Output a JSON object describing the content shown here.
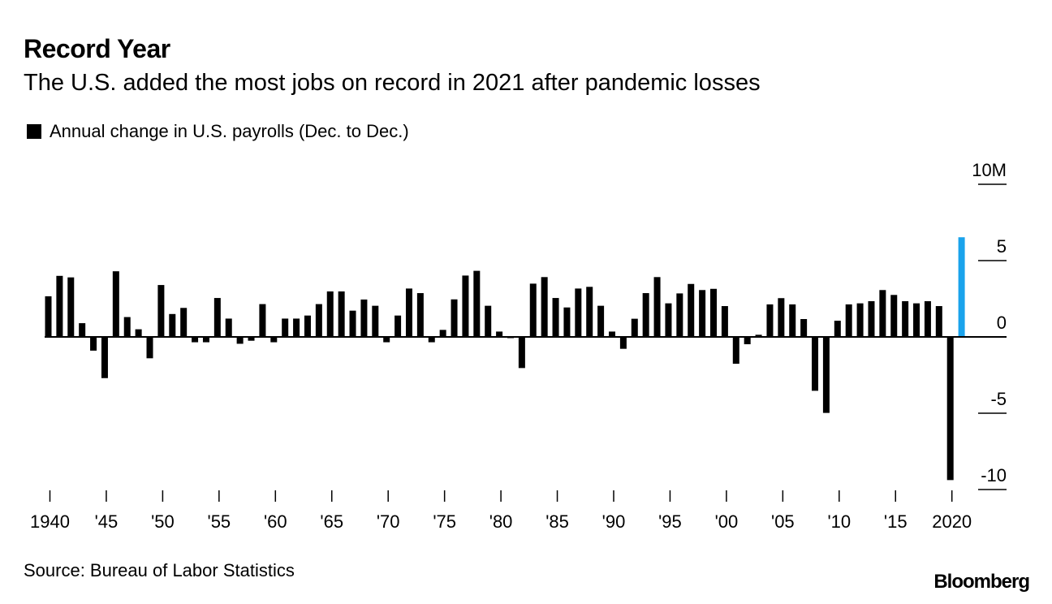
{
  "header": {
    "title": "Record Year",
    "subtitle": "The U.S. added the most jobs on record in 2021 after pandemic losses"
  },
  "footer": {
    "source": "Source: Bureau of Labor Statistics",
    "logo": "Bloomberg"
  },
  "colors": {
    "bar": "#000000",
    "highlight": "#1aa3ec"
  },
  "chart_data": {
    "type": "bar",
    "title": "Record Year",
    "legend": [
      "Annual change in U.S. payrolls (Dec. to Dec.)"
    ],
    "legend_placement": "top-left",
    "ylabel": "",
    "xlabel": "",
    "units": "millions",
    "ylim": [
      -10,
      10
    ],
    "y_ticks": [
      {
        "value": 10,
        "label": "10M"
      },
      {
        "value": 5,
        "label": "5"
      },
      {
        "value": 0,
        "label": "0"
      },
      {
        "value": -5,
        "label": "-5"
      },
      {
        "value": -10,
        "label": "-10"
      }
    ],
    "x_ticks": [
      {
        "year": 1940,
        "label": "1940"
      },
      {
        "year": 1945,
        "label": "'45"
      },
      {
        "year": 1950,
        "label": "'50"
      },
      {
        "year": 1955,
        "label": "'55"
      },
      {
        "year": 1960,
        "label": "'60"
      },
      {
        "year": 1965,
        "label": "'65"
      },
      {
        "year": 1970,
        "label": "'70"
      },
      {
        "year": 1975,
        "label": "'75"
      },
      {
        "year": 1980,
        "label": "'80"
      },
      {
        "year": 1985,
        "label": "'85"
      },
      {
        "year": 1990,
        "label": "'90"
      },
      {
        "year": 1995,
        "label": "'95"
      },
      {
        "year": 2000,
        "label": "'00"
      },
      {
        "year": 2005,
        "label": "'05"
      },
      {
        "year": 2010,
        "label": "'10"
      },
      {
        "year": 2015,
        "label": "'15"
      },
      {
        "year": 2020,
        "label": "2020"
      }
    ],
    "highlight_year": 2021,
    "x": [
      1940,
      1941,
      1942,
      1943,
      1944,
      1945,
      1946,
      1947,
      1948,
      1949,
      1950,
      1951,
      1952,
      1953,
      1954,
      1955,
      1956,
      1957,
      1958,
      1959,
      1960,
      1961,
      1962,
      1963,
      1964,
      1965,
      1966,
      1967,
      1968,
      1969,
      1970,
      1971,
      1972,
      1973,
      1974,
      1975,
      1976,
      1977,
      1978,
      1979,
      1980,
      1981,
      1982,
      1983,
      1984,
      1985,
      1986,
      1987,
      1988,
      1989,
      1990,
      1991,
      1992,
      1993,
      1994,
      1995,
      1996,
      1997,
      1998,
      1999,
      2000,
      2001,
      2002,
      2003,
      2004,
      2005,
      2006,
      2007,
      2008,
      2009,
      2010,
      2011,
      2012,
      2013,
      2014,
      2015,
      2016,
      2017,
      2018,
      2019,
      2020,
      2021
    ],
    "values": [
      2.66,
      4.0,
      3.9,
      0.9,
      -0.9,
      -2.7,
      4.3,
      1.3,
      0.5,
      -1.4,
      3.4,
      1.5,
      1.9,
      -0.35,
      -0.35,
      2.55,
      1.2,
      -0.45,
      -0.25,
      2.15,
      -0.35,
      1.2,
      1.2,
      1.4,
      2.15,
      2.98,
      2.98,
      1.72,
      2.45,
      2.04,
      -0.35,
      1.4,
      3.17,
      2.87,
      -0.35,
      0.46,
      2.46,
      4.02,
      4.33,
      2.04,
      0.35,
      -0.05,
      -2.04,
      3.49,
      3.92,
      2.55,
      1.93,
      3.17,
      3.28,
      2.04,
      0.35,
      -0.78,
      1.19,
      2.87,
      3.92,
      2.2,
      2.85,
      3.47,
      3.07,
      3.15,
      2.02,
      -1.76,
      -0.48,
      0.14,
      2.13,
      2.54,
      2.13,
      1.17,
      -3.53,
      -4.98,
      1.06,
      2.13,
      2.2,
      2.34,
      3.07,
      2.75,
      2.34,
      2.2,
      2.34,
      2.02,
      -9.38,
      6.53
    ]
  }
}
